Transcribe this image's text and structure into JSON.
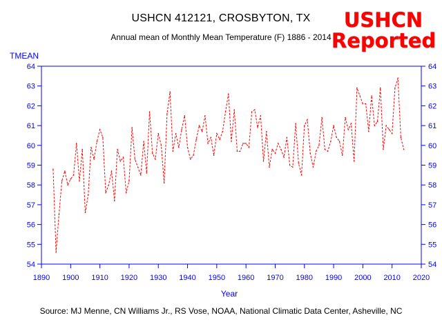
{
  "header": {
    "title": "USHCN 412121, CROSBYTON, TX",
    "subtitle": "Annual mean of Monthly Mean Temperature (F) 1886 - 2014"
  },
  "logo": {
    "line1": "USHCN",
    "line2": "Reported"
  },
  "footer": {
    "source": "Source: MJ Menne, CN Williams Jr., RS Vose, NOAA, National Climatic Data Center, Asheville, NC"
  },
  "colors": {
    "axis": "#0000ff",
    "series": "#ff0000",
    "logo": "#ff0000"
  },
  "chart_data": {
    "type": "line",
    "title": "USHCN 412121, CROSBYTON, TX",
    "subtitle": "Annual mean of Monthly Mean Temperature (F) 1886 - 2014",
    "xlabel": "Year",
    "ylabel": "TMEAN",
    "xlim": [
      1890,
      2020
    ],
    "ylim": [
      54,
      64
    ],
    "xticks": [
      1890,
      1900,
      1910,
      1920,
      1930,
      1940,
      1950,
      1960,
      1970,
      1980,
      1990,
      2000,
      2010,
      2020
    ],
    "yticks": [
      54,
      55,
      56,
      57,
      58,
      59,
      60,
      61,
      62,
      63,
      64
    ],
    "grid": false,
    "line_style": "dashed",
    "series": [
      {
        "name": "TMEAN",
        "x": [
          1894,
          1895,
          1896,
          1897,
          1898,
          1899,
          1900,
          1901,
          1902,
          1903,
          1904,
          1905,
          1906,
          1907,
          1908,
          1909,
          1910,
          1911,
          1912,
          1913,
          1914,
          1915,
          1916,
          1917,
          1918,
          1919,
          1920,
          1921,
          1922,
          1923,
          1924,
          1925,
          1926,
          1927,
          1928,
          1929,
          1930,
          1931,
          1932,
          1933,
          1934,
          1935,
          1936,
          1937,
          1938,
          1939,
          1940,
          1941,
          1942,
          1943,
          1944,
          1945,
          1946,
          1947,
          1948,
          1949,
          1950,
          1951,
          1952,
          1953,
          1954,
          1955,
          1956,
          1957,
          1958,
          1959,
          1960,
          1961,
          1962,
          1963,
          1964,
          1965,
          1966,
          1967,
          1968,
          1969,
          1970,
          1971,
          1972,
          1973,
          1974,
          1975,
          1976,
          1977,
          1978,
          1979,
          1980,
          1981,
          1982,
          1983,
          1984,
          1985,
          1986,
          1987,
          1988,
          1989,
          1990,
          1991,
          1992,
          1993,
          1994,
          1995,
          1996,
          1997,
          1998,
          1999,
          2000,
          2001,
          2002,
          2003,
          2004,
          2005,
          2006,
          2007,
          2008,
          2009,
          2010,
          2011,
          2012,
          2013,
          2014
        ],
        "values": [
          58.8,
          54.6,
          56.5,
          58.2,
          58.7,
          58.0,
          58.3,
          58.5,
          60.1,
          58.2,
          59.8,
          56.6,
          57.5,
          59.9,
          59.3,
          60.2,
          60.8,
          60.4,
          57.6,
          58.0,
          58.7,
          57.2,
          59.8,
          59.2,
          59.4,
          57.6,
          58.2,
          60.9,
          59.3,
          58.9,
          58.5,
          60.2,
          58.6,
          61.7,
          59.6,
          59.3,
          60.6,
          60.0,
          58.1,
          61.6,
          62.7,
          59.7,
          60.6,
          59.9,
          60.8,
          61.5,
          59.9,
          59.3,
          59.5,
          60.3,
          61.0,
          60.7,
          61.5,
          60.1,
          60.4,
          59.5,
          60.6,
          60.3,
          60.7,
          61.7,
          62.6,
          60.2,
          61.8,
          59.7,
          59.7,
          60.1,
          60.1,
          59.9,
          61.7,
          61.8,
          60.9,
          61.5,
          59.2,
          60.7,
          58.9,
          59.8,
          59.6,
          60.1,
          59.8,
          59.4,
          60.4,
          59.0,
          58.9,
          61.1,
          59.1,
          58.5,
          61.0,
          61.3,
          59.6,
          58.9,
          59.7,
          60.0,
          61.4,
          59.8,
          59.7,
          60.2,
          61.0,
          60.4,
          60.2,
          59.5,
          61.4,
          60.8,
          61.1,
          59.2,
          62.9,
          62.5,
          62.1,
          62.1,
          60.7,
          62.5,
          61.0,
          61.2,
          62.9,
          59.8,
          61.0,
          60.8,
          60.6,
          62.9,
          63.4,
          60.4,
          59.8
        ]
      }
    ]
  }
}
